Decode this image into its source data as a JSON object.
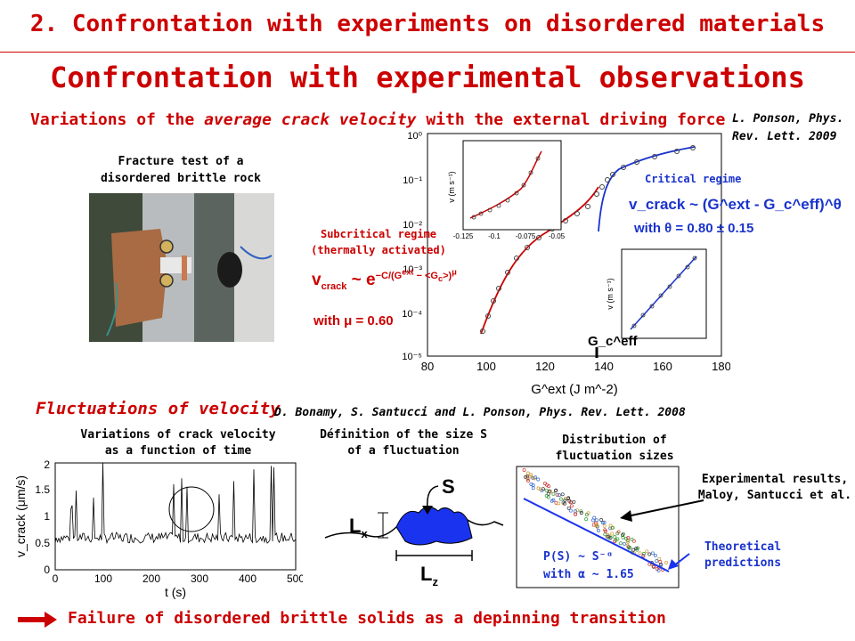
{
  "header": {
    "title": "2. Confrontation with experiments on disordered materials"
  },
  "main_title": "Confrontation with experimental observations",
  "subtitle": {
    "prefix": "Variations of the ",
    "emph": "average crack velocity",
    "suffix": " with the external driving force"
  },
  "reference_top": {
    "line1": "L. Ponson, Phys.",
    "line2": "Rev. Lett. 2009"
  },
  "photo_caption": {
    "line1": "Fracture test of a",
    "line2": "disordered brittle rock"
  },
  "main_plot": {
    "critical_label": "Critical regime",
    "critical_law": "v_crack ~ (G^ext - G_c^eff)^θ",
    "critical_exp": "with θ = 0.80 ± 0.15",
    "subcritical_label1": "Subcritical regime",
    "subcritical_label2": "(thermally activated)",
    "subcritical_exp": "with μ = 0.60",
    "gc_label": "G_c^eff",
    "xlabel": "G^ext (J m^-2)",
    "xticks": [
      "80",
      "100",
      "120",
      "140",
      "160",
      "180"
    ],
    "yticks": [
      "10⁰",
      "10⁻¹",
      "10⁻²",
      "10⁻³",
      "10⁻⁴",
      "10⁻⁵"
    ],
    "inset1_xticks": [
      "-0.125",
      "-0.1",
      "-0.075",
      "-0.05"
    ],
    "inset1_ylabel": "v (m s⁻¹)",
    "inset2_ylabel": "v (m s⁻¹)"
  },
  "fluct_title": "Fluctuations of velocity",
  "reference_mid": "D. Bonamy, S. Santucci and L. Ponson, Phys. Rev. Lett. 2008",
  "time_plot": {
    "caption1": "Variations of crack velocity",
    "caption2": "as a function of time",
    "xlabel": "t (s)",
    "ylabel": "v_crack (μm/s)",
    "xticks": [
      "0",
      "100",
      "200",
      "300",
      "400",
      "500"
    ],
    "yticks": [
      "0",
      "0.5",
      "1",
      "1.5",
      "2"
    ]
  },
  "size_def": {
    "caption1": "Définition of the size S",
    "caption2": "of a fluctuation",
    "S": "S",
    "Lx": "L",
    "Lx_sub": "x",
    "Lz": "L",
    "Lz_sub": "z"
  },
  "distribution": {
    "caption1": "Distribution of",
    "caption2": "fluctuation sizes",
    "exp_label1": "Experimental results,",
    "exp_label2": "Maloy, Santucci et al.",
    "theory_label1": "Theoretical",
    "theory_label2": "predictions",
    "law1": "P(S)  ~ S⁻ᵅ",
    "law2": "with α ~ 1.65"
  },
  "conclusion": "Failure of disordered brittle solids as a depinning transition",
  "colors": {
    "accent": "#cc0000",
    "blue": "#1a33cc"
  }
}
